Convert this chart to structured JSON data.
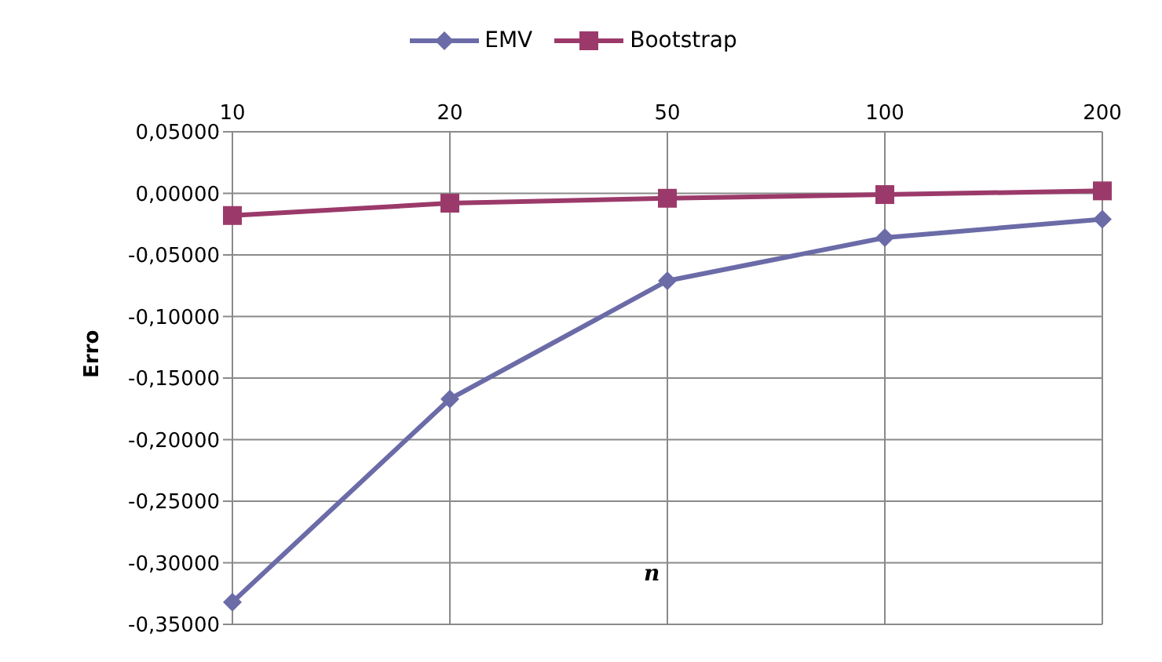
{
  "chart_data": {
    "type": "line",
    "xlabel": "n",
    "ylabel": "Erro",
    "categories": [
      "10",
      "20",
      "50",
      "100",
      "200"
    ],
    "series": [
      {
        "name": "EMV",
        "color": "#6b6ba8",
        "marker": "diamond",
        "values": [
          -0.332,
          -0.167,
          -0.071,
          -0.036,
          -0.021
        ]
      },
      {
        "name": "Bootstrap",
        "color": "#9b3a6a",
        "marker": "square",
        "values": [
          -0.018,
          -0.008,
          -0.004,
          -0.001,
          0.002
        ]
      }
    ],
    "ylim": [
      -0.35,
      0.05
    ],
    "yticks": [
      {
        "value": -0.35,
        "label": "-0,35000"
      },
      {
        "value": -0.3,
        "label": "-0,30000"
      },
      {
        "value": -0.25,
        "label": "-0,25000"
      },
      {
        "value": -0.2,
        "label": "-0,20000"
      },
      {
        "value": -0.15,
        "label": "-0,15000"
      },
      {
        "value": -0.1,
        "label": "-0,10000"
      },
      {
        "value": -0.05,
        "label": "-0,05000"
      },
      {
        "value": 0,
        "label": "0,00000"
      },
      {
        "value": 0.05,
        "label": "0,05000"
      }
    ],
    "grid": true,
    "legend": "top"
  }
}
